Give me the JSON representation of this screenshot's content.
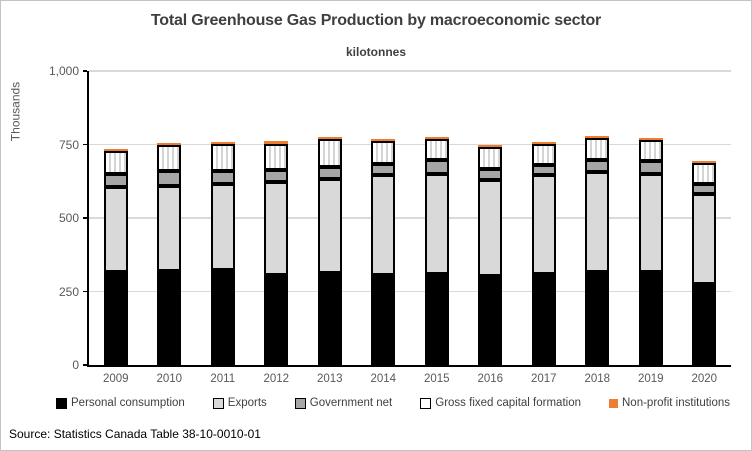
{
  "figure": {
    "source_note": "Source: Statistics Canada Table 38-10-0010-01"
  },
  "chart_data": {
    "type": "bar",
    "stacked": true,
    "title": "Total Greenhouse Gas Production by macroeconomic sector",
    "subtitle": "kilotonnes",
    "ylabel": "Thousands",
    "xlabel": "",
    "ylim": [
      0,
      1000
    ],
    "grid": true,
    "legend_position": "bottom",
    "gridline_color": "#d9d9d9",
    "axis_color": "#000000",
    "categories": [
      "2009",
      "2010",
      "2011",
      "2012",
      "2013",
      "2014",
      "2015",
      "2016",
      "2017",
      "2018",
      "2019",
      "2020"
    ],
    "yticks": [
      {
        "value": 1000,
        "label": "1,000"
      },
      {
        "value": 750,
        "label": "750"
      },
      {
        "value": 500,
        "label": "500"
      },
      {
        "value": 250,
        "label": "250"
      },
      {
        "value": 0,
        "label": "0"
      }
    ],
    "series": [
      {
        "name": "Personal consumption",
        "color": "#000000",
        "pattern": "solid",
        "outlined": true,
        "values": [
          318,
          320,
          324,
          307,
          314,
          307,
          311,
          304,
          311,
          318,
          318,
          274
        ]
      },
      {
        "name": "Exports",
        "color": "#d9d9d9",
        "pattern": "solid",
        "outlined": true,
        "values": [
          287,
          290,
          290,
          314,
          318,
          338,
          338,
          324,
          334,
          338,
          331,
          307
        ]
      },
      {
        "name": "Government net",
        "color": "#a6a6a6",
        "pattern": "solid",
        "outlined": true,
        "values": [
          44,
          51,
          47,
          41,
          41,
          37,
          47,
          37,
          37,
          41,
          44,
          34
        ]
      },
      {
        "name": "Gross fixed capital formation",
        "color": "#ffffff",
        "pattern": "vertical-stripes",
        "outlined": true,
        "values": [
          78,
          88,
          91,
          91,
          95,
          79,
          74,
          76,
          71,
          74,
          71,
          71
        ]
      },
      {
        "name": "Non-profit institutions",
        "color": "#ed7d31",
        "pattern": "solid",
        "outlined": false,
        "values": [
          6,
          7,
          7,
          7,
          5,
          6,
          5,
          4,
          5,
          5,
          5,
          5
        ]
      }
    ]
  }
}
